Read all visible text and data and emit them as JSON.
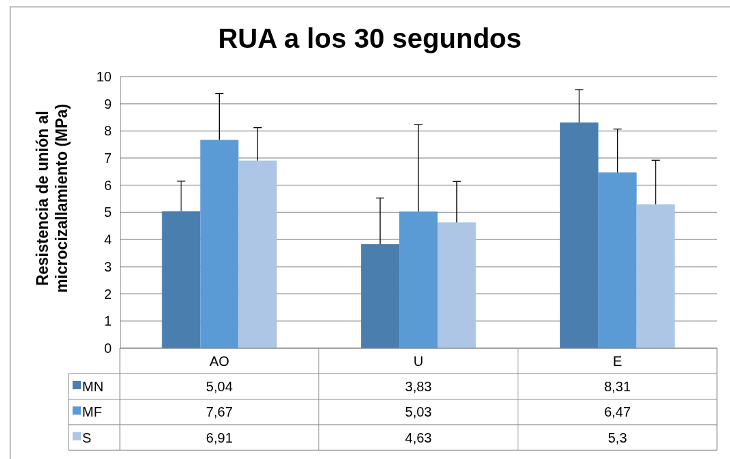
{
  "chart_data": {
    "type": "bar",
    "title": "RUA a los 30 segundos",
    "ylabel": "Resistencia de unión al microcizallamiento (MPa)",
    "categories": [
      "AO",
      "U",
      "E"
    ],
    "series": [
      {
        "name": "MN",
        "color": "#4a7eae",
        "values": [
          5.04,
          3.83,
          8.31
        ],
        "value_labels": [
          "5,04",
          "3,83",
          "8,31"
        ],
        "errors": [
          [
            5.04,
            6.15
          ],
          [
            3.83,
            5.53
          ],
          [
            8.31,
            9.52
          ]
        ]
      },
      {
        "name": "MF",
        "color": "#5b9bd5",
        "values": [
          7.67,
          5.03,
          6.47
        ],
        "value_labels": [
          "7,67",
          "5,03",
          "6,47"
        ],
        "errors": [
          [
            7.67,
            9.38
          ],
          [
            5.03,
            8.23
          ],
          [
            6.47,
            8.07
          ]
        ]
      },
      {
        "name": "S",
        "color": "#adc6e5",
        "values": [
          6.91,
          4.63,
          5.3
        ],
        "value_labels": [
          "6,91",
          "4,63",
          "5,3"
        ],
        "errors": [
          [
            6.91,
            8.12
          ],
          [
            4.63,
            6.14
          ],
          [
            5.3,
            6.92
          ]
        ]
      }
    ],
    "ylim": [
      0,
      10
    ],
    "yticks": [
      0,
      1,
      2,
      3,
      4,
      5,
      6,
      7,
      8,
      9,
      10
    ],
    "grid": "y",
    "legend": "bottom"
  }
}
